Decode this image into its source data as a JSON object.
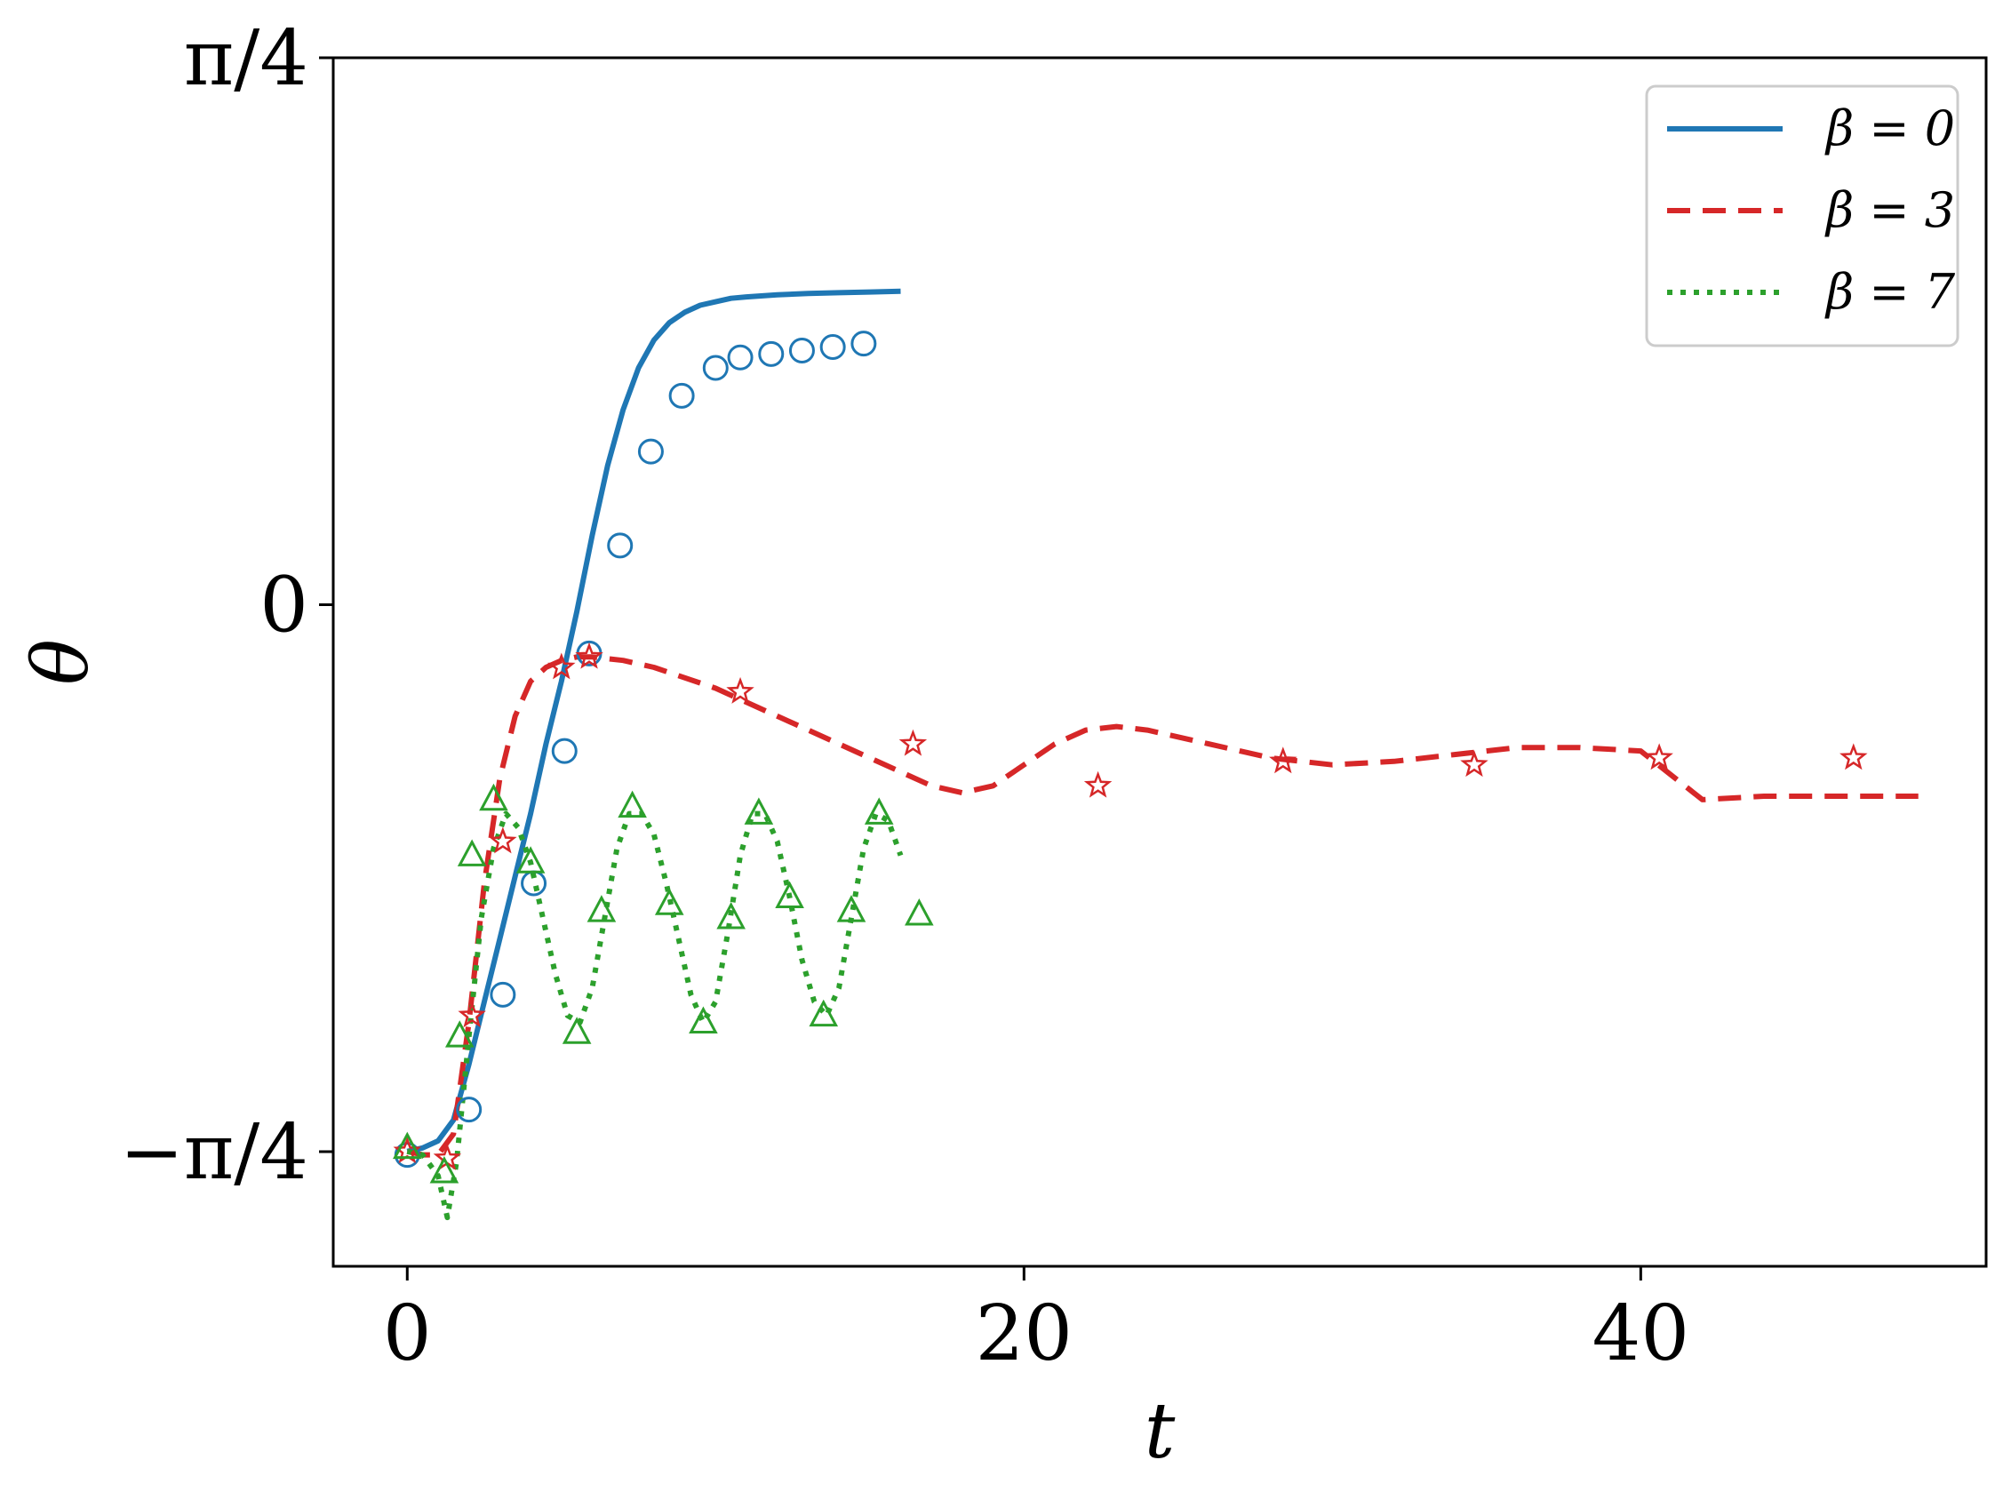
{
  "chart_data": {
    "type": "line",
    "xlabel": "t",
    "ylabel": "θ",
    "xlim": [
      -2.4,
      51.2
    ],
    "ylim": [
      -0.95,
      0.785398
    ],
    "xticks": [
      {
        "value": 0,
        "label": "0"
      },
      {
        "value": 20,
        "label": "20"
      },
      {
        "value": 40,
        "label": "40"
      }
    ],
    "yticks": [
      {
        "value": -0.785398,
        "label": "−π/4"
      },
      {
        "value": 0,
        "label": "0"
      },
      {
        "value": 0.785398,
        "label": "π/4"
      }
    ],
    "legend_position": "upper right",
    "series": [
      {
        "name": "β = 0",
        "color": "#1f77b4",
        "line_style": "solid",
        "marker": "circle",
        "line": {
          "x": [
            0,
            0.5,
            1.0,
            1.5,
            2.0,
            2.5,
            3.0,
            3.5,
            4.0,
            4.5,
            5.0,
            5.5,
            6.0,
            6.5,
            7.0,
            7.5,
            8.0,
            8.5,
            9.0,
            9.5,
            10.0,
            10.5,
            11.0,
            12.0,
            13.0,
            14.0,
            15.0,
            16.0
          ],
          "y": [
            -0.785,
            -0.78,
            -0.77,
            -0.74,
            -0.66,
            -0.57,
            -0.48,
            -0.39,
            -0.3,
            -0.2,
            -0.11,
            -0.01,
            0.1,
            0.2,
            0.28,
            0.34,
            0.38,
            0.405,
            0.42,
            0.43,
            0.435,
            0.44,
            0.442,
            0.445,
            0.447,
            0.448,
            0.449,
            0.45
          ]
        },
        "markers": {
          "x": [
            0,
            2.0,
            3.1,
            4.1,
            5.1,
            5.9,
            6.9,
            7.9,
            8.9,
            10.0,
            10.8,
            11.8,
            12.8,
            13.8,
            14.8
          ],
          "y": [
            -0.79,
            -0.725,
            -0.56,
            -0.4,
            -0.21,
            -0.07,
            0.085,
            0.22,
            0.3,
            0.34,
            0.355,
            0.36,
            0.365,
            0.37,
            0.375
          ]
        }
      },
      {
        "name": "β = 3",
        "color": "#d62728",
        "line_style": "dashed",
        "marker": "star",
        "line": {
          "x": [
            0,
            0.5,
            1.0,
            1.5,
            2.0,
            2.5,
            3.0,
            3.5,
            4.0,
            4.5,
            5.0,
            5.5,
            6.0,
            7.0,
            8.0,
            10.0,
            12.0,
            14.0,
            16.0,
            17.0,
            18.0,
            19.0,
            20.0,
            21.0,
            22.0,
            23.0,
            24.0,
            26.0,
            28.0,
            30.0,
            32.0,
            34.0,
            36.0,
            38.0,
            40.0,
            42.0,
            44.0,
            46.0,
            48.0,
            49.0
          ],
          "y": [
            -0.785,
            -0.79,
            -0.79,
            -0.76,
            -0.6,
            -0.4,
            -0.25,
            -0.16,
            -0.11,
            -0.09,
            -0.08,
            -0.075,
            -0.075,
            -0.08,
            -0.09,
            -0.12,
            -0.16,
            -0.2,
            -0.24,
            -0.26,
            -0.27,
            -0.26,
            -0.23,
            -0.2,
            -0.18,
            -0.175,
            -0.18,
            -0.2,
            -0.22,
            -0.23,
            -0.225,
            -0.215,
            -0.205,
            -0.205,
            -0.21,
            -0.28,
            -0.275,
            -0.275,
            -0.275,
            -0.275
          ]
        },
        "markers": {
          "x": [
            0,
            1.3,
            2.1,
            3.1,
            5.0,
            5.9,
            10.8,
            16.4,
            22.4,
            28.4,
            34.6,
            40.6,
            46.9
          ],
          "y": [
            -0.785,
            -0.795,
            -0.59,
            -0.34,
            -0.09,
            -0.075,
            -0.125,
            -0.2,
            -0.26,
            -0.225,
            -0.23,
            -0.22,
            -0.22
          ]
        }
      },
      {
        "name": "β = 7",
        "color": "#2ca02c",
        "line_style": "dotted",
        "marker": "triangle",
        "line": {
          "x": [
            0,
            0.5,
            1.0,
            1.3,
            1.6,
            2.0,
            2.4,
            2.8,
            3.2,
            3.6,
            4.0,
            4.4,
            4.8,
            5.2,
            5.6,
            6.0,
            6.4,
            6.8,
            7.2,
            7.6,
            8.0,
            8.4,
            8.8,
            9.2,
            9.6,
            10.0,
            10.4,
            10.8,
            11.2,
            11.6,
            12.0,
            12.4,
            12.8,
            13.2,
            13.6,
            14.0,
            14.4,
            14.8,
            15.2,
            15.6,
            16.0
          ],
          "y": [
            -0.785,
            -0.79,
            -0.82,
            -0.88,
            -0.8,
            -0.62,
            -0.45,
            -0.35,
            -0.3,
            -0.32,
            -0.37,
            -0.45,
            -0.53,
            -0.59,
            -0.6,
            -0.55,
            -0.45,
            -0.35,
            -0.3,
            -0.3,
            -0.33,
            -0.4,
            -0.48,
            -0.56,
            -0.6,
            -0.57,
            -0.47,
            -0.36,
            -0.3,
            -0.3,
            -0.34,
            -0.42,
            -0.51,
            -0.57,
            -0.59,
            -0.55,
            -0.45,
            -0.35,
            -0.3,
            -0.31,
            -0.36
          ]
        },
        "markers": {
          "x": [
            0,
            1.2,
            1.7,
            2.1,
            2.8,
            4.0,
            5.5,
            6.3,
            7.3,
            8.5,
            9.6,
            10.5,
            11.4,
            12.4,
            13.5,
            14.4,
            15.3,
            16.6
          ],
          "y": [
            -0.78,
            -0.815,
            -0.62,
            -0.36,
            -0.28,
            -0.37,
            -0.615,
            -0.44,
            -0.29,
            -0.43,
            -0.6,
            -0.45,
            -0.3,
            -0.42,
            -0.59,
            -0.44,
            -0.3,
            -0.445
          ]
        }
      }
    ]
  }
}
